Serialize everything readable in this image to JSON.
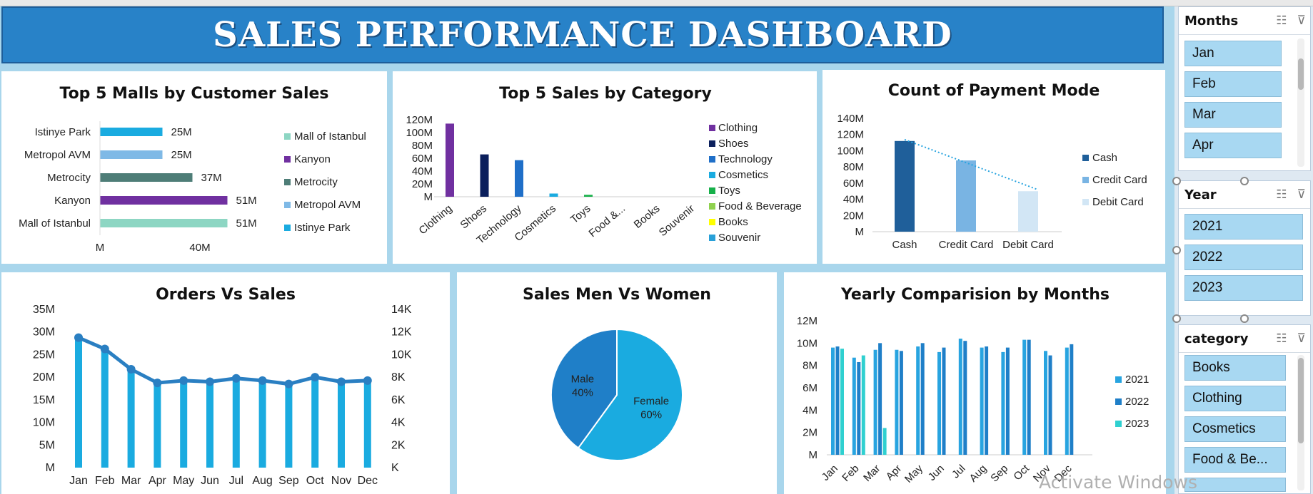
{
  "dashboard": {
    "title": "SALES PERFORMANCE DASHBOARD"
  },
  "colors": {
    "header": "#2882c8",
    "mall_colors": [
      "#8dd6c3",
      "#7030a0",
      "#4e7d77",
      "#7fb9e6",
      "#1aabe0"
    ]
  },
  "chart_data": [
    {
      "id": "top_malls",
      "type": "bar",
      "orientation": "horizontal",
      "title": "Top 5 Malls by Customer Sales",
      "categories": [
        "Mall of Istanbul",
        "Kanyon",
        "Metrocity",
        "Metropol AVM",
        "Istinye Park"
      ],
      "values": [
        51,
        51,
        37,
        25,
        25
      ],
      "data_labels": [
        "51M",
        "51M",
        "37M",
        "25M",
        "25M"
      ],
      "colors": [
        "#8dd6c3",
        "#7030a0",
        "#4e7d77",
        "#7fb9e6",
        "#1aabe0"
      ],
      "x_ticks": [
        "M",
        "40M"
      ],
      "xlim": [
        0,
        55
      ],
      "legend": [
        "Mall of Istanbul",
        "Kanyon",
        "Metrocity",
        "Metropol AVM",
        "Istinye Park"
      ],
      "legend_position": "right"
    },
    {
      "id": "category_sales",
      "type": "bar",
      "title": "Top 5  Sales by Category",
      "categories": [
        "Clothing",
        "Shoes",
        "Technology",
        "Cosmetics",
        "Toys",
        "Food &...",
        "Books",
        "Souvenir"
      ],
      "values": [
        114,
        66,
        57,
        5,
        3,
        0,
        0,
        0
      ],
      "colors": [
        "#7030a0",
        "#0b1f5c",
        "#1f6fc8",
        "#1aabe0",
        "#17b04a",
        "#8fd14f",
        "#ffff00",
        "#28a0d8"
      ],
      "y_ticks": [
        "M",
        "20M",
        "40M",
        "60M",
        "80M",
        "100M",
        "120M"
      ],
      "ylim": [
        0,
        120
      ],
      "legend": [
        "Clothing",
        "Shoes",
        "Technology",
        "Cosmetics",
        "Toys",
        "Food & Beverage",
        "Books",
        "Souvenir"
      ],
      "legend_position": "right"
    },
    {
      "id": "payment_mode",
      "type": "bar",
      "title": "Count of Payment Mode",
      "categories": [
        "Cash",
        "Credit Card",
        "Debit Card"
      ],
      "values": [
        112,
        88,
        50
      ],
      "colors": [
        "#1f5f9a",
        "#79b4e3",
        "#d2e6f5"
      ],
      "trendline": true,
      "y_ticks": [
        "M",
        "20M",
        "40M",
        "60M",
        "80M",
        "100M",
        "120M",
        "140M"
      ],
      "ylim": [
        0,
        140
      ],
      "legend": [
        "Cash",
        "Credit Card",
        "Debit Card"
      ],
      "legend_position": "right"
    },
    {
      "id": "orders_vs_sales",
      "type": "bar",
      "combo": "bar+line",
      "title": "Orders Vs Sales",
      "categories": [
        "Jan",
        "Feb",
        "Mar",
        "Apr",
        "May",
        "Jun",
        "Jul",
        "Aug",
        "Sep",
        "Oct",
        "Nov",
        "Dec"
      ],
      "series": [
        {
          "values": [
            28.5,
            26,
            21.5,
            18.5,
            19,
            18.8,
            19.5,
            19,
            18.3,
            19.7,
            18.8,
            19
          ]
        },
        {
          "values": [
            11.5,
            10.5,
            8.7,
            7.5,
            7.7,
            7.6,
            7.9,
            7.7,
            7.4,
            8,
            7.6,
            7.7
          ],
          "axis": "secondary"
        }
      ],
      "y_ticks": [
        "M",
        "5M",
        "10M",
        "15M",
        "20M",
        "25M",
        "30M",
        "35M"
      ],
      "ylim": [
        0,
        35
      ],
      "y2_ticks": [
        "K",
        "2K",
        "4K",
        "6K",
        "8K",
        "10K",
        "12K",
        "14K"
      ],
      "y2lim": [
        0,
        14
      ]
    },
    {
      "id": "gender_sales",
      "type": "pie",
      "title": "Sales Men Vs Women",
      "slices": [
        {
          "label": "Female",
          "value": 60,
          "pct": "60%",
          "color": "#1aabe0"
        },
        {
          "label": "Male",
          "value": 40,
          "pct": "40%",
          "color": "#1f7fc8"
        }
      ]
    },
    {
      "id": "yearly_by_month",
      "type": "bar",
      "title": "Yearly Comparision by Months",
      "categories": [
        "Jan",
        "Feb",
        "Mar",
        "Apr",
        "May",
        "Jun",
        "Jul",
        "Aug",
        "Sep",
        "Oct",
        "Nov",
        "Dec"
      ],
      "series": [
        {
          "name": "2021",
          "color": "#28a4e0",
          "values": [
            9.6,
            8.7,
            9.4,
            9.4,
            9.7,
            9.2,
            10.4,
            9.6,
            9.2,
            10.3,
            9.3,
            9.6
          ]
        },
        {
          "name": "2022",
          "color": "#1f7fc8",
          "values": [
            9.7,
            8.3,
            10.0,
            9.3,
            10.0,
            9.6,
            10.2,
            9.7,
            9.6,
            10.3,
            8.9,
            9.9
          ]
        },
        {
          "name": "2023",
          "color": "#2fd0d0",
          "values": [
            9.5,
            8.9,
            2.4,
            0,
            0,
            0,
            0,
            0,
            0,
            0,
            0,
            0
          ]
        }
      ],
      "y_ticks": [
        "M",
        "2M",
        "4M",
        "6M",
        "8M",
        "10M",
        "12M"
      ],
      "ylim": [
        0,
        12
      ],
      "legend_position": "right"
    }
  ],
  "slicers": [
    {
      "title": "Months",
      "items": [
        "Jan",
        "Feb",
        "Mar",
        "Apr"
      ]
    },
    {
      "title": "Year",
      "items": [
        "2021",
        "2022",
        "2023"
      ]
    },
    {
      "title": "category",
      "items": [
        "Books",
        "Clothing",
        "Cosmetics",
        "Food & Be..."
      ]
    }
  ],
  "watermark": "Activate Windows"
}
